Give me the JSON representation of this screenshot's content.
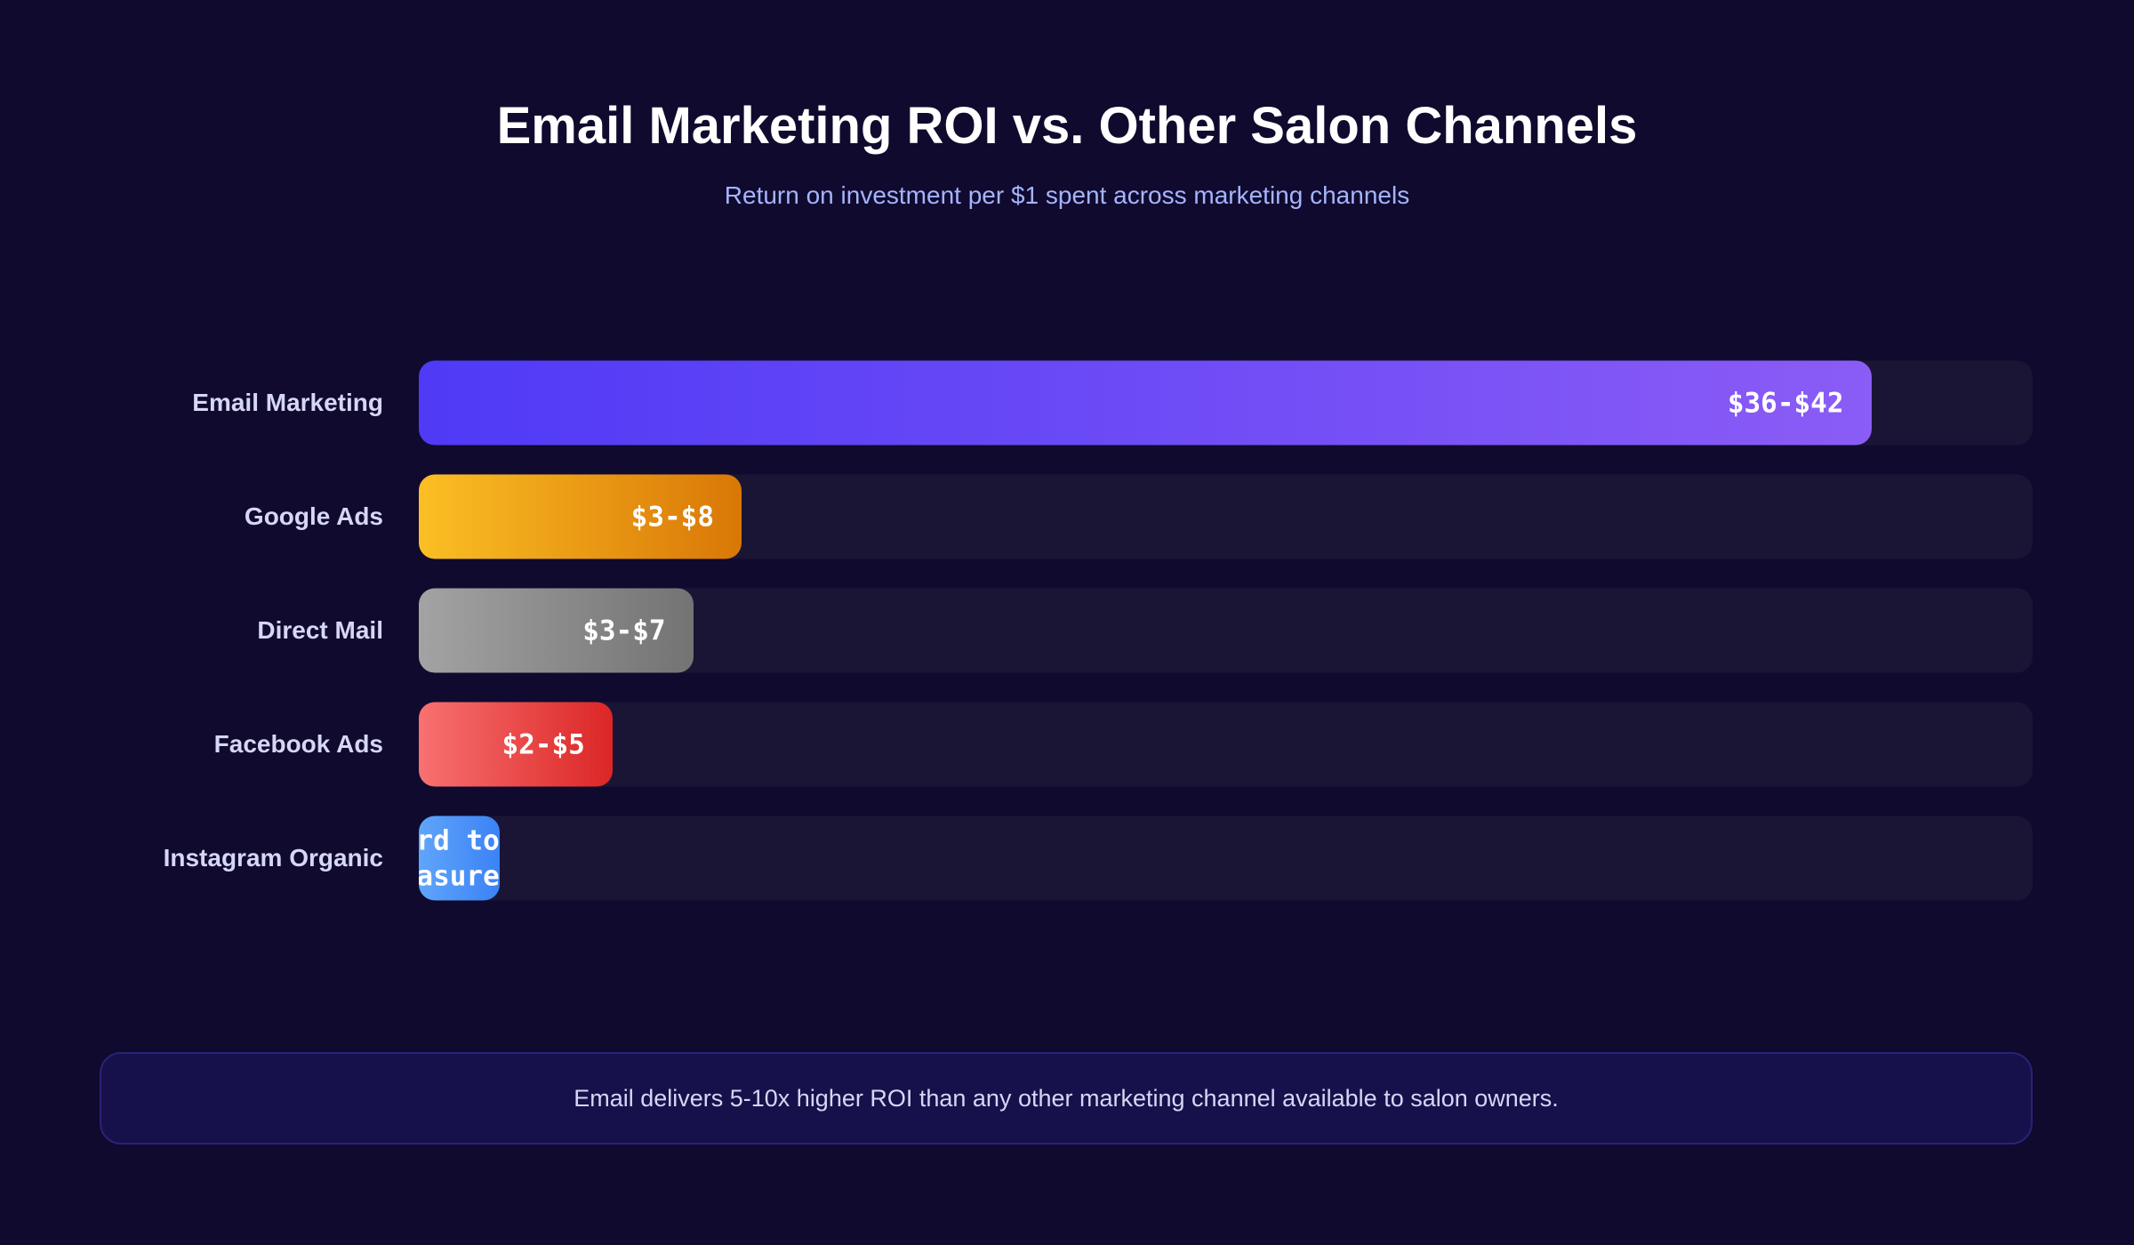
{
  "chart_data": {
    "type": "hbar",
    "title": "Email Marketing ROI vs. Other Salon Channels",
    "subtitle": "Return on investment per $1 spent across marketing channels",
    "categories": [
      "Email Marketing",
      "Google Ads",
      "Direct Mail",
      "Facebook Ads",
      "Instagram Organic"
    ],
    "values": [
      90,
      20,
      17,
      12,
      5
    ],
    "value_labels": [
      "$36-$42",
      "$3-$8",
      "$3-$7",
      "$2-$5",
      "Hard to measure"
    ],
    "xlim": [
      0,
      100
    ],
    "colors": [
      [
        "#4f3af6",
        "#8b5cf6"
      ],
      [
        "#fbbf24",
        "#d97706"
      ],
      [
        "#a3a3a3",
        "#737373"
      ],
      [
        "#f87171",
        "#dc2626"
      ],
      [
        "#60a5fa",
        "#3b82f6"
      ]
    ],
    "annotation": "Email delivers 5-10x higher ROI than any other marketing channel available to salon owners."
  }
}
